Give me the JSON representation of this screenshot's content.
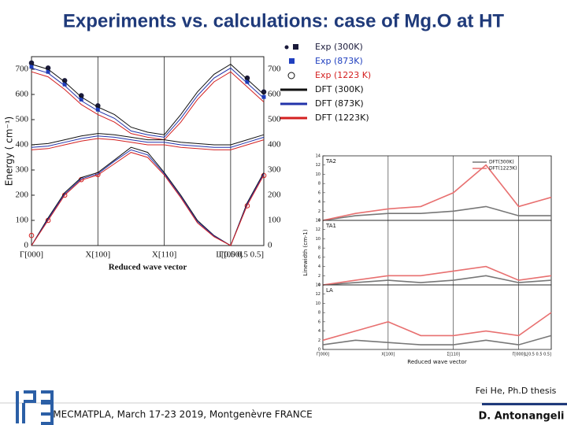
{
  "slide": {
    "title": "Experiments vs. calculations: case of Mg.O at HT",
    "credit": "Fei He, Ph.D thesis",
    "footer": "MECMATPLA, March 17-23 2019, Montgenèvre FRANCE",
    "author": "D. Antonangeli"
  },
  "chart_data": [
    {
      "type": "line",
      "ylabel": "Energy ( cm⁻¹)",
      "xlabel": "Reduced wave vector",
      "x": [
        0,
        0.25,
        0.5,
        0.75,
        1,
        1.25,
        1.5,
        1.75,
        2,
        2.25,
        2.5,
        2.75,
        3,
        3.25,
        3.5
      ],
      "xlim": [
        0,
        3.5
      ],
      "xticks": [
        {
          "value": 0,
          "label": "Γ[000]"
        },
        {
          "value": 1,
          "label": "X[100]"
        },
        {
          "value": 2,
          "label": "X[110]"
        },
        {
          "value": 3,
          "label": "Γ[000]"
        },
        {
          "value": 3.5,
          "label": "L[0.5 0.5 0.5]"
        }
      ],
      "ylim": [
        0,
        750
      ],
      "yticks": [
        0,
        100,
        200,
        300,
        400,
        500,
        600,
        700
      ],
      "grid_x": true,
      "series": [
        {
          "name": "Exp (300K)",
          "color": "#1a1a3a",
          "marker": "circle",
          "values": [
            725,
            705,
            655,
            595,
            555,
            null,
            null,
            null,
            null,
            null,
            null,
            null,
            null,
            665,
            610
          ]
        },
        {
          "name": "Exp (873K)",
          "color": "#1f3fbf",
          "marker": "square",
          "values": [
            710,
            690,
            640,
            580,
            540,
            null,
            null,
            null,
            null,
            null,
            null,
            null,
            null,
            650,
            590
          ]
        },
        {
          "name": "Exp (1223 K)",
          "color": "#d42020",
          "marker": "ring",
          "values": [
            40,
            100,
            200,
            262,
            282,
            null,
            null,
            null,
            null,
            null,
            null,
            null,
            null,
            158,
            278
          ]
        },
        {
          "name": "DFT (300K)",
          "color": "#111111",
          "values": [
            720,
            700,
            650,
            590,
            550,
            520,
            470,
            450,
            440,
            520,
            610,
            680,
            720,
            660,
            600
          ]
        },
        {
          "name": "DFT (873K)",
          "color": "#2233aa",
          "values": [
            705,
            685,
            635,
            575,
            535,
            505,
            455,
            440,
            430,
            505,
            595,
            665,
            705,
            645,
            585
          ]
        },
        {
          "name": "DFT (1223K)",
          "color": "#d42020",
          "values": [
            690,
            670,
            620,
            560,
            520,
            490,
            445,
            430,
            420,
            490,
            580,
            650,
            690,
            630,
            570
          ]
        },
        {
          "color": "#111111",
          "values": [
            400,
            405,
            420,
            435,
            445,
            440,
            430,
            420,
            420,
            410,
            405,
            400,
            400,
            420,
            440
          ]
        },
        {
          "color": "#2233aa",
          "values": [
            390,
            395,
            410,
            425,
            435,
            430,
            420,
            410,
            410,
            400,
            395,
            390,
            390,
            410,
            430
          ]
        },
        {
          "color": "#d42020",
          "values": [
            380,
            385,
            400,
            415,
            425,
            420,
            410,
            400,
            400,
            390,
            385,
            380,
            380,
            400,
            420
          ]
        },
        {
          "color": "#111111",
          "values": [
            0,
            110,
            210,
            270,
            290,
            340,
            390,
            370,
            290,
            200,
            100,
            40,
            0,
            170,
            290
          ]
        },
        {
          "color": "#2233aa",
          "values": [
            0,
            105,
            205,
            265,
            285,
            335,
            380,
            360,
            285,
            195,
            95,
            38,
            0,
            165,
            285
          ]
        },
        {
          "color": "#d42020",
          "values": [
            0,
            100,
            200,
            260,
            280,
            325,
            370,
            350,
            280,
            190,
            90,
            35,
            0,
            160,
            280
          ]
        }
      ]
    },
    {
      "type": "panels",
      "ylabel": "Linewidth (cm-1)",
      "xlabel": "Reduced wave vector",
      "x": [
        0,
        0.5,
        1,
        1.5,
        2,
        2.5,
        3,
        3.5
      ],
      "xlim": [
        0,
        3.5
      ],
      "xticks": [
        {
          "value": 0,
          "label": "Γ[000]"
        },
        {
          "value": 1,
          "label": "X[100]"
        },
        {
          "value": 2,
          "label": "Σ[110]"
        },
        {
          "value": 3,
          "label": "Γ[000]"
        },
        {
          "value": 3.5,
          "label": "L[0.5 0.5 0.5]"
        }
      ],
      "ylim": [
        0,
        14
      ],
      "yticks": [
        0,
        2,
        4,
        6,
        8,
        10,
        12,
        14
      ],
      "panels": [
        {
          "label": "TA2",
          "series": [
            {
              "name": "DFT(300K)",
              "color": "#777777",
              "values": [
                0,
                1,
                1.5,
                1.5,
                2,
                3,
                1,
                1
              ]
            },
            {
              "name": "DFT(1223K)",
              "color": "#e87070",
              "values": [
                0,
                1.5,
                2.5,
                3,
                6,
                12,
                3,
                5
              ]
            }
          ]
        },
        {
          "label": "TA1",
          "series": [
            {
              "color": "#777777",
              "values": [
                0,
                0.5,
                1,
                0.5,
                1,
                2,
                0.5,
                1
              ]
            },
            {
              "color": "#e87070",
              "values": [
                0,
                1,
                2,
                2,
                3,
                4,
                1,
                2
              ]
            }
          ]
        },
        {
          "label": "LA",
          "series": [
            {
              "color": "#777777",
              "values": [
                1,
                2,
                1.5,
                1,
                1,
                2,
                1,
                3
              ]
            },
            {
              "color": "#e87070",
              "values": [
                2,
                4,
                6,
                3,
                3,
                4,
                3,
                8
              ]
            }
          ]
        }
      ]
    }
  ]
}
